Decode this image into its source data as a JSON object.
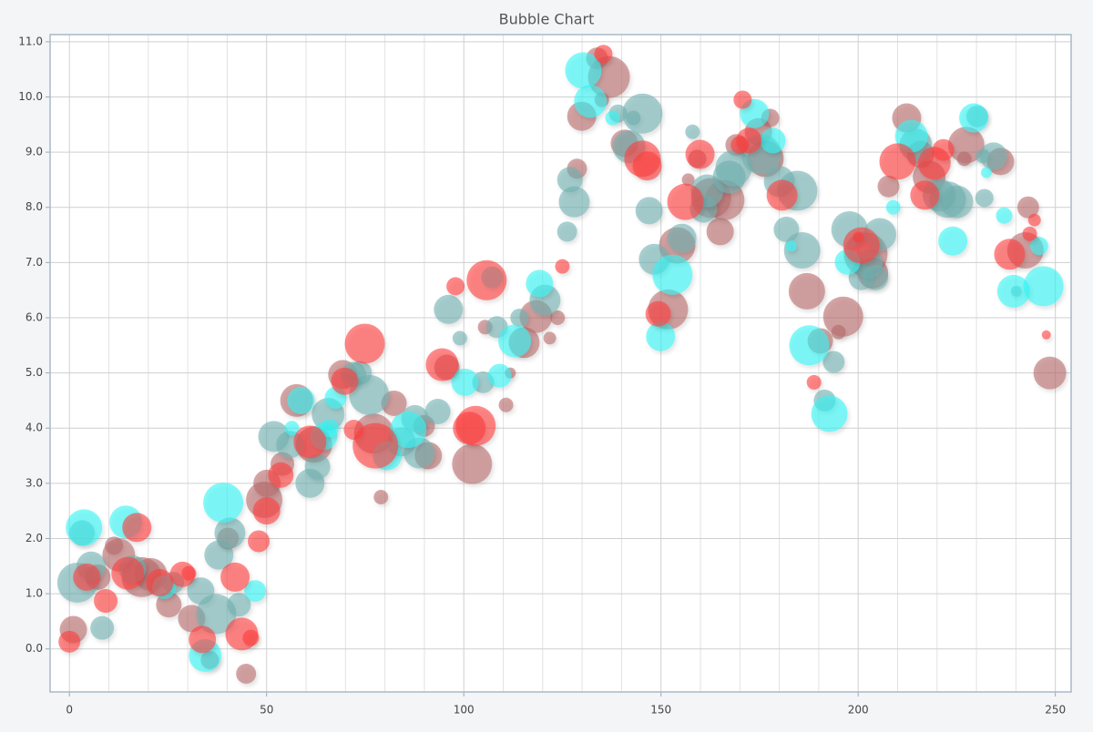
{
  "chart_data": {
    "type": "bubble",
    "title": "Bubble Chart",
    "xlim": [
      -4.9,
      254
    ],
    "ylim": [
      -0.78,
      11.13
    ],
    "xticks": [
      0,
      50,
      100,
      150,
      200,
      250
    ],
    "xminorticks": [
      10,
      20,
      30,
      40,
      60,
      70,
      80,
      90,
      110,
      120,
      130,
      140,
      160,
      170,
      180,
      190,
      210,
      220,
      230,
      240
    ],
    "yticks": [
      {
        "value": 0,
        "label": "0.0"
      },
      {
        "value": 1,
        "label": "1.0"
      },
      {
        "value": 2,
        "label": "2.0"
      },
      {
        "value": 3,
        "label": "3.0"
      },
      {
        "value": 4,
        "label": "4.0"
      },
      {
        "value": 5,
        "label": "5.0"
      },
      {
        "value": 6,
        "label": "6.0"
      },
      {
        "value": 7,
        "label": "7.0"
      },
      {
        "value": 8,
        "label": "8.0"
      },
      {
        "value": 9,
        "label": "9.0"
      },
      {
        "value": 10,
        "label": "10.0"
      },
      {
        "value": 11,
        "label": "11.0"
      }
    ],
    "grid": true,
    "series": [
      {
        "color": "#b86a6a",
        "x": [
          1,
          7.2,
          11.3,
          12.5,
          18.3,
          20.6,
          25.2,
          31,
          35.6,
          40.2,
          44.8,
          49.4,
          50.1,
          54,
          57.6,
          62,
          69.3,
          77.2,
          79,
          82.3,
          89.9,
          91,
          95.7,
          102.1,
          105.4,
          110.7,
          111.8,
          115.3,
          118.3,
          121.8,
          123.8,
          128.7,
          129.9,
          133.8,
          136.8,
          135,
          140.7,
          151.8,
          154.1,
          156.9,
          159.2,
          162.7,
          165,
          166.1,
          169.1,
          174.7,
          176.5,
          177.7,
          187,
          190.4,
          195,
          196.2,
          201.9,
          203.7,
          207.7,
          212.3,
          215.8,
          218,
          226.9,
          227.4,
          236.1,
          242.4,
          243.1,
          248.6
        ],
        "values": [
          0.35,
          1.3,
          1.87,
          1.7,
          1.3,
          1.35,
          0.8,
          0.55,
          -0.2,
          2.0,
          -0.45,
          2.7,
          3.0,
          3.35,
          4.5,
          3.7,
          4.97,
          3.9,
          2.75,
          4.45,
          4.04,
          3.5,
          5.1,
          3.35,
          5.83,
          4.42,
          5.0,
          5.55,
          6.02,
          5.63,
          6.0,
          8.7,
          9.65,
          10.7,
          10.36,
          9.95,
          9.16,
          6.15,
          7.31,
          8.5,
          8.88,
          8.17,
          7.56,
          8.13,
          9.13,
          9.37,
          8.88,
          9.62,
          6.48,
          5.58,
          5.74,
          6.02,
          7.15,
          6.81,
          8.38,
          9.62,
          8.96,
          8.55,
          8.88,
          9.13,
          8.83,
          7.22,
          8.0,
          5.0
        ],
        "sizes": [
          15,
          14,
          10,
          18,
          22,
          18,
          14,
          15,
          10,
          12,
          11,
          20,
          15,
          13,
          18,
          20,
          16,
          22,
          8,
          14,
          12,
          15,
          14,
          22,
          8,
          8,
          6,
          17,
          18,
          7,
          8,
          11,
          16,
          12,
          23,
          8,
          15,
          22,
          20,
          7,
          10,
          22,
          15,
          22,
          12,
          15,
          20,
          10,
          20,
          14,
          8,
          22,
          24,
          17,
          12,
          16,
          15,
          18,
          8,
          20,
          15,
          20,
          12,
          18
        ]
      },
      {
        "color": "#6fb0b0",
        "x": [
          2,
          3.2,
          5.5,
          8.3,
          16,
          26.3,
          33.3,
          37.2,
          37.9,
          40.7,
          43,
          51.8,
          55.9,
          61,
          62.9,
          65.6,
          72,
          73.7,
          76,
          84.1,
          87.6,
          88.7,
          93.4,
          96.1,
          99,
          104.9,
          108.4,
          114.1,
          120.6,
          126.2,
          126.9,
          128,
          139.1,
          141.9,
          143,
          145.3,
          147,
          148.3,
          155.3,
          158,
          160.8,
          161.7,
          167.3,
          168.4,
          175.4,
          180,
          181.8,
          184.6,
          185.8,
          191.5,
          193.8,
          197.8,
          200.8,
          202.6,
          204.4,
          205.5,
          214.6,
          220.5,
          222.7,
          225,
          230.2,
          231.6,
          232,
          234.3,
          240.1
        ],
        "values": [
          1.2,
          2.1,
          1.5,
          0.38,
          1.45,
          1.2,
          1.05,
          0.63,
          1.7,
          2.1,
          0.8,
          3.85,
          3.7,
          3.0,
          3.3,
          4.25,
          4.97,
          5.0,
          4.6,
          3.75,
          4.17,
          3.55,
          4.3,
          6.15,
          5.63,
          4.83,
          5.83,
          6.0,
          6.32,
          7.56,
          8.5,
          8.1,
          9.7,
          9.1,
          9.62,
          9.7,
          7.94,
          7.06,
          7.44,
          9.37,
          7.97,
          8.3,
          8.55,
          8.71,
          8.96,
          8.47,
          7.6,
          8.3,
          7.22,
          4.5,
          5.2,
          7.6,
          6.73,
          6.98,
          6.73,
          7.51,
          9.13,
          8.22,
          8.14,
          8.1,
          9.65,
          8.93,
          8.17,
          8.93,
          6.48
        ],
        "sizes": [
          22,
          14,
          16,
          13,
          15,
          12,
          15,
          22,
          16,
          17,
          13,
          17,
          15,
          16,
          14,
          18,
          14,
          13,
          22,
          16,
          15,
          17,
          14,
          16,
          8,
          12,
          12,
          10,
          17,
          11,
          14,
          17,
          10,
          18,
          8,
          22,
          15,
          17,
          16,
          8,
          15,
          18,
          18,
          20,
          22,
          17,
          14,
          22,
          20,
          12,
          12,
          20,
          14,
          16,
          14,
          18,
          18,
          18,
          20,
          18,
          12,
          8,
          10,
          15,
          6
        ]
      },
      {
        "color": "#33f5f5",
        "x": [
          3.7,
          14.3,
          24,
          34.4,
          39,
          47.1,
          58.7,
          56.4,
          64.5,
          67.5,
          66,
          80.6,
          85.9,
          100.3,
          107.2,
          109.1,
          112.9,
          119.2,
          130.3,
          132.1,
          137.7,
          149.9,
          152.9,
          173.7,
          178.4,
          183,
          187.6,
          192.7,
          197.3,
          208.9,
          213.5,
          224,
          229.3,
          232.5,
          237,
          239.4,
          245.9,
          247
        ],
        "values": [
          2.2,
          2.3,
          1.12,
          -0.12,
          2.65,
          1.05,
          4.5,
          4.0,
          3.85,
          4.55,
          4.0,
          3.5,
          3.97,
          4.83,
          6.73,
          4.95,
          5.58,
          6.62,
          10.48,
          9.92,
          9.62,
          5.66,
          6.78,
          9.7,
          9.21,
          7.3,
          5.5,
          4.26,
          7.01,
          8.0,
          9.29,
          7.39,
          9.62,
          8.63,
          7.85,
          6.48,
          7.3,
          6.57
        ],
        "sizes": [
          20,
          18,
          13,
          18,
          22,
          12,
          15,
          8,
          15,
          12,
          10,
          16,
          20,
          15,
          12,
          13,
          18,
          15,
          20,
          18,
          8,
          16,
          22,
          16,
          14,
          6,
          22,
          20,
          14,
          8,
          18,
          16,
          16,
          6,
          9,
          18,
          10,
          22
        ]
      },
      {
        "color": "#ff3b3b",
        "x": [
          0,
          4.4,
          9.2,
          17.1,
          14.8,
          22.9,
          28.7,
          30.3,
          33.7,
          42,
          43.7,
          46,
          48,
          50,
          53.6,
          61,
          69.8,
          74.9,
          72.1,
          77.6,
          94.5,
          97.9,
          101.4,
          103,
          105.8,
          125,
          135.4,
          145.3,
          146.5,
          149.3,
          156.2,
          159.9,
          170.7,
          170,
          172.3,
          180.7,
          188.8,
          200,
          200.8,
          210,
          216.9,
          219.3,
          221.6,
          238.4,
          243.5,
          244.7,
          247.7
        ],
        "values": [
          0.13,
          1.3,
          0.87,
          2.2,
          1.37,
          1.2,
          1.35,
          1.37,
          0.17,
          1.3,
          0.27,
          0.2,
          1.95,
          2.5,
          3.15,
          3.75,
          4.85,
          5.53,
          3.97,
          3.68,
          5.15,
          6.57,
          4.0,
          4.04,
          6.68,
          6.93,
          10.78,
          8.88,
          8.75,
          6.07,
          8.1,
          8.96,
          9.95,
          9.13,
          9.21,
          8.22,
          4.83,
          7.46,
          7.31,
          8.83,
          8.22,
          8.8,
          9.04,
          7.15,
          7.52,
          7.77,
          5.69
        ],
        "sizes": [
          12,
          15,
          13,
          16,
          18,
          15,
          14,
          8,
          15,
          16,
          18,
          9,
          12,
          15,
          14,
          18,
          15,
          22,
          11,
          25,
          18,
          10,
          18,
          22,
          22,
          8,
          10,
          20,
          16,
          14,
          20,
          16,
          10,
          10,
          14,
          17,
          8,
          6,
          20,
          20,
          16,
          18,
          12,
          17,
          8,
          7,
          5
        ]
      }
    ]
  }
}
